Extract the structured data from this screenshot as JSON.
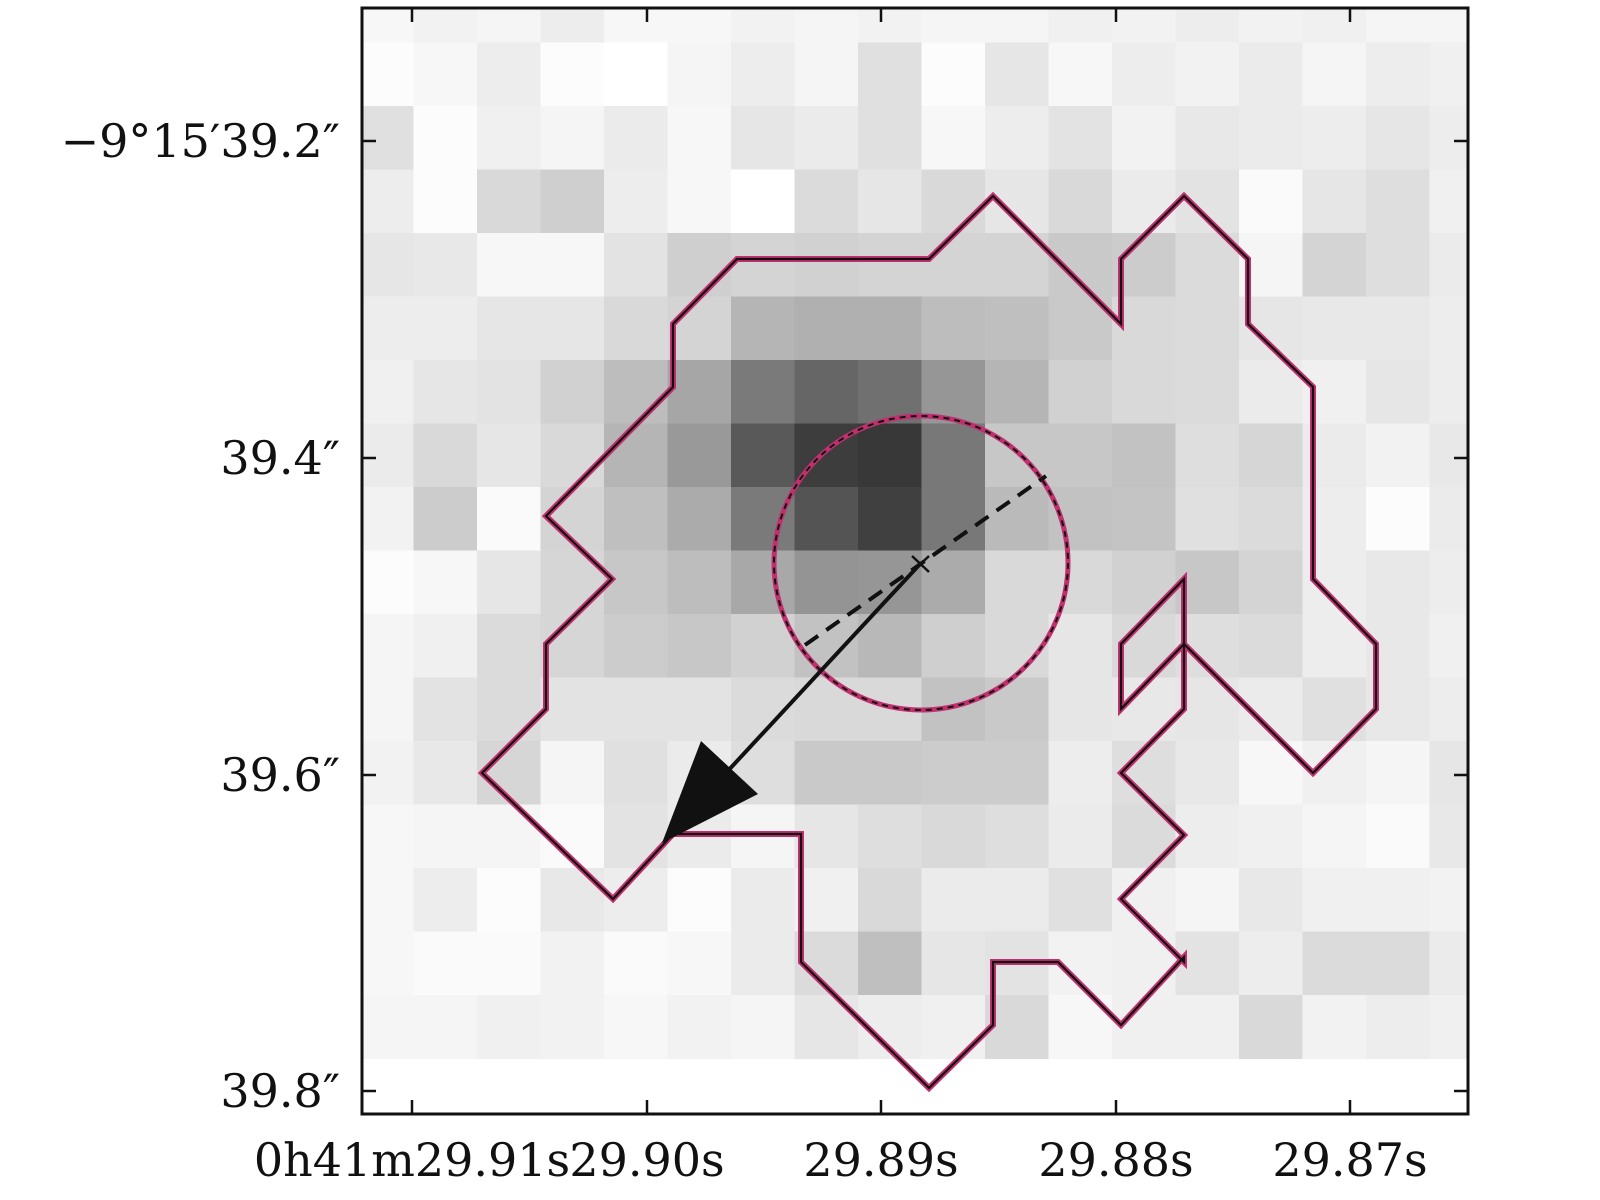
{
  "image": {
    "pixel_grid": [
      [
        0.97,
        0.95,
        0.96,
        0.93,
        0.97,
        0.97,
        0.95,
        0.96,
        0.95,
        0.96,
        0.96,
        0.94,
        0.95,
        0.93,
        0.95,
        0.94,
        0.96,
        0.96
      ],
      [
        0.99,
        0.97,
        0.93,
        0.99,
        1.0,
        0.96,
        0.93,
        0.96,
        0.88,
        0.99,
        0.9,
        0.97,
        0.93,
        0.95,
        0.92,
        0.96,
        0.93,
        0.94
      ],
      [
        0.88,
        0.99,
        0.94,
        0.96,
        0.92,
        0.97,
        0.9,
        0.92,
        0.88,
        0.97,
        0.93,
        0.89,
        0.95,
        0.91,
        0.92,
        0.93,
        0.9,
        0.93
      ],
      [
        0.93,
        0.99,
        0.85,
        0.81,
        0.93,
        0.97,
        1.0,
        0.86,
        0.9,
        0.85,
        0.9,
        0.85,
        0.92,
        0.89,
        0.98,
        0.9,
        0.87,
        0.94
      ],
      [
        0.9,
        0.91,
        0.97,
        0.97,
        0.89,
        0.81,
        0.83,
        0.82,
        0.83,
        0.83,
        0.83,
        0.79,
        0.8,
        0.86,
        0.96,
        0.83,
        0.87,
        0.92
      ],
      [
        0.93,
        0.93,
        0.9,
        0.9,
        0.85,
        0.83,
        0.71,
        0.69,
        0.69,
        0.74,
        0.75,
        0.79,
        0.85,
        0.86,
        0.9,
        0.91,
        0.91,
        0.93
      ],
      [
        0.94,
        0.9,
        0.89,
        0.82,
        0.74,
        0.65,
        0.48,
        0.4,
        0.44,
        0.59,
        0.71,
        0.82,
        0.85,
        0.86,
        0.92,
        0.94,
        0.9,
        0.93
      ],
      [
        0.92,
        0.85,
        0.9,
        0.85,
        0.71,
        0.6,
        0.35,
        0.24,
        0.22,
        0.47,
        0.78,
        0.78,
        0.76,
        0.87,
        0.84,
        0.92,
        0.95,
        0.91
      ],
      [
        0.95,
        0.8,
        0.98,
        0.83,
        0.75,
        0.67,
        0.48,
        0.33,
        0.25,
        0.47,
        0.73,
        0.76,
        0.77,
        0.88,
        0.86,
        0.93,
        0.99,
        0.92
      ],
      [
        0.99,
        0.97,
        0.9,
        0.84,
        0.78,
        0.74,
        0.66,
        0.58,
        0.59,
        0.67,
        0.85,
        0.85,
        0.82,
        0.78,
        0.83,
        0.93,
        0.91,
        0.93
      ],
      [
        0.96,
        0.94,
        0.86,
        0.84,
        0.8,
        0.78,
        0.82,
        0.76,
        0.72,
        0.81,
        0.85,
        0.9,
        0.85,
        0.87,
        0.86,
        0.93,
        0.91,
        0.94
      ],
      [
        0.96,
        0.89,
        0.86,
        0.89,
        0.89,
        0.89,
        0.86,
        0.85,
        0.85,
        0.76,
        0.79,
        0.9,
        0.91,
        0.9,
        0.92,
        0.88,
        0.91,
        0.93
      ],
      [
        0.95,
        0.91,
        0.84,
        0.96,
        0.88,
        0.92,
        0.87,
        0.79,
        0.79,
        0.8,
        0.8,
        0.93,
        0.87,
        0.91,
        0.97,
        0.94,
        0.96,
        0.9
      ],
      [
        0.97,
        0.96,
        0.96,
        0.98,
        0.89,
        0.92,
        0.96,
        0.9,
        0.87,
        0.85,
        0.87,
        0.92,
        0.86,
        0.93,
        0.94,
        0.96,
        0.98,
        0.91
      ],
      [
        0.97,
        0.93,
        0.99,
        0.91,
        0.93,
        0.99,
        0.92,
        0.94,
        0.85,
        0.92,
        0.92,
        0.88,
        0.94,
        0.96,
        0.91,
        0.94,
        0.94,
        0.95
      ],
      [
        0.97,
        0.98,
        0.98,
        0.95,
        0.98,
        0.97,
        0.92,
        0.86,
        0.75,
        0.9,
        0.89,
        0.95,
        0.94,
        0.89,
        0.93,
        0.86,
        0.86,
        0.92
      ],
      [
        0.96,
        0.96,
        0.94,
        0.95,
        0.97,
        0.95,
        0.96,
        0.9,
        0.93,
        0.94,
        0.85,
        0.97,
        0.94,
        0.94,
        0.85,
        0.95,
        0.93,
        0.94
      ]
    ]
  },
  "axes": {
    "x_ticks": [
      "0h41m29.91s",
      "29.90s",
      "29.89s",
      "29.88s",
      "29.87s"
    ],
    "y_ticks": [
      "−9°15′39.2″",
      "39.4″",
      "39.6″",
      "39.8″"
    ]
  },
  "colors": {
    "contour": "#c0306f",
    "outline": "#111111"
  }
}
